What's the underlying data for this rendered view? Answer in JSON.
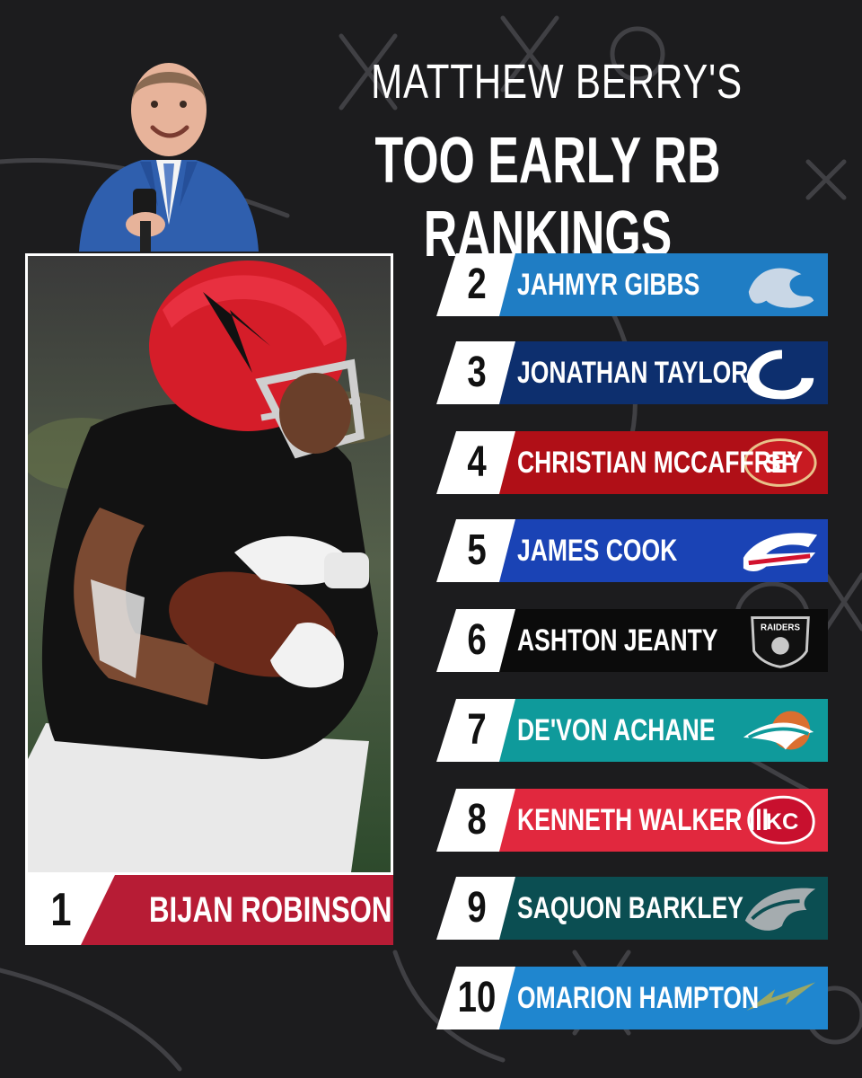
{
  "header": {
    "title_line1": "MATTHEW BERRY'S",
    "title_line2": "TOO EARLY RB RANKINGS"
  },
  "featured": {
    "rank": "1",
    "name": "BIJAN ROBINSON",
    "color": "#b71c35"
  },
  "rankings": [
    {
      "rank": "2",
      "name": "JAHMYR GIBBS",
      "color": "#1f7dc4",
      "logo": "lions-logo-icon"
    },
    {
      "rank": "3",
      "name": "JONATHAN TAYLOR",
      "color": "#0d2f6e",
      "logo": "colts-logo-icon"
    },
    {
      "rank": "4",
      "name": "CHRISTIAN MCCAFFREY",
      "color": "#b00f17",
      "logo": "49ers-logo-icon"
    },
    {
      "rank": "5",
      "name": "JAMES COOK",
      "color": "#1a43b5",
      "logo": "bills-logo-icon"
    },
    {
      "rank": "6",
      "name": "ASHTON JEANTY",
      "color": "#0b0b0b",
      "logo": "raiders-logo-icon"
    },
    {
      "rank": "7",
      "name": "DE'VON ACHANE",
      "color": "#0f9a9b",
      "logo": "dolphins-logo-icon"
    },
    {
      "rank": "8",
      "name": "KENNETH WALKER III",
      "color": "#e1283e",
      "logo": "chiefs-logo-icon"
    },
    {
      "rank": "9",
      "name": "SAQUON BARKLEY",
      "color": "#0b4e52",
      "logo": "eagles-logo-icon"
    },
    {
      "rank": "10",
      "name": "OMARION HAMPTON",
      "color": "#1f86cf",
      "logo": "chargers-logo-icon"
    }
  ]
}
